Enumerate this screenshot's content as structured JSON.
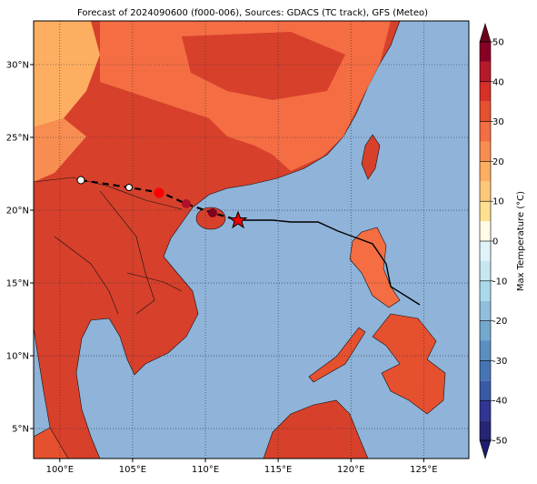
{
  "title": "Forecast of 2024090600 (f000-006), Sources: GDACS (TC track), GFS (Meteo)",
  "map": {
    "xlim": [
      98.2,
      128.1
    ],
    "ylim": [
      2.94,
      33
    ],
    "xticks": [
      {
        "value": 100,
        "label": "100°E"
      },
      {
        "value": 105,
        "label": "105°E"
      },
      {
        "value": 110,
        "label": "110°E"
      },
      {
        "value": 115,
        "label": "115°E"
      },
      {
        "value": 120,
        "label": "120°E"
      },
      {
        "value": 125,
        "label": "125°E"
      }
    ],
    "yticks": [
      {
        "value": 5,
        "label": "5°N"
      },
      {
        "value": 10,
        "label": "10°N"
      },
      {
        "value": 15,
        "label": "15°N"
      },
      {
        "value": 20,
        "label": "20°N"
      },
      {
        "value": 25,
        "label": "25°N"
      },
      {
        "value": 30,
        "label": "30°N"
      }
    ],
    "grid": true
  },
  "colorbar": {
    "label": "Max Temperature (°C)",
    "ylim": [
      -50,
      50
    ],
    "yticks": [
      -50,
      -40,
      -30,
      -20,
      -10,
      0,
      10,
      20,
      30,
      40,
      50
    ],
    "colors": [
      "#262675",
      "#313695",
      "#3a5aa6",
      "#4575b4",
      "#5b8ec1",
      "#74a9cf",
      "#91bfdb",
      "#abd9e9",
      "#c7e6f0",
      "#e0f3f8",
      "#fffbe6",
      "#fee090",
      "#fdc879",
      "#fdae61",
      "#f88d52",
      "#f46d43",
      "#e5502f",
      "#d73027",
      "#b61a2a",
      "#8a0025"
    ]
  }
}
